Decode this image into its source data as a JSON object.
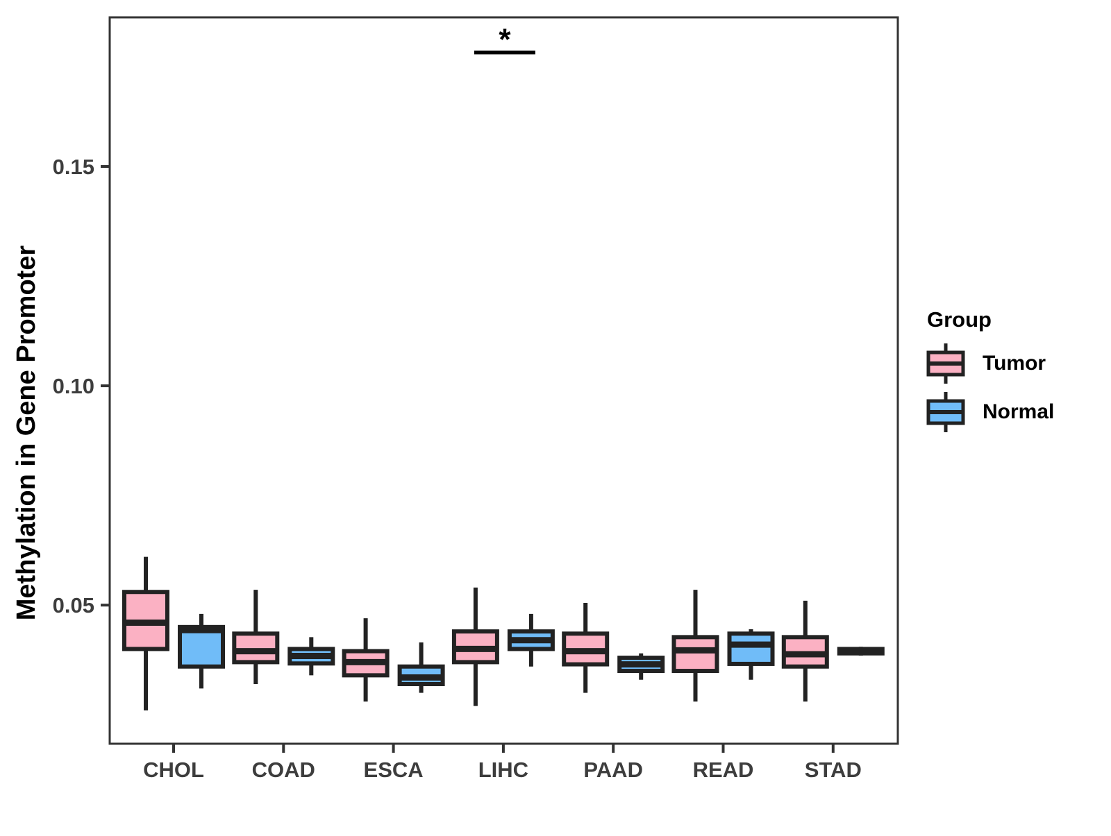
{
  "chart_data": {
    "type": "boxplot",
    "title": "",
    "xlabel": "",
    "ylabel": "Methylation in Gene Promoter",
    "categories": [
      "CHOL",
      "COAD",
      "ESCA",
      "LIHC",
      "PAAD",
      "READ",
      "STAD"
    ],
    "y_ticks": [
      0.05,
      0.1,
      0.15
    ],
    "y_tick_labels": [
      "0.05",
      "0.10",
      "0.15"
    ],
    "ylim": [
      0.0184,
      0.184
    ],
    "grid": false,
    "legend": {
      "title": "Group",
      "position": "right",
      "entries": [
        {
          "label": "Tumor",
          "fill": "#FBB1C3"
        },
        {
          "label": "Normal",
          "fill": "#70BCF8"
        }
      ]
    },
    "series": [
      {
        "name": "Tumor",
        "fill": "#FBB1C3",
        "boxes": [
          {
            "category": "CHOL",
            "low": 0.026,
            "q1": 0.04,
            "median": 0.046,
            "q3": 0.053,
            "high": 0.061
          },
          {
            "category": "COAD",
            "low": 0.032,
            "q1": 0.037,
            "median": 0.0395,
            "q3": 0.0435,
            "high": 0.0535
          },
          {
            "category": "ESCA",
            "low": 0.028,
            "q1": 0.034,
            "median": 0.037,
            "q3": 0.0395,
            "high": 0.047
          },
          {
            "category": "LIHC",
            "low": 0.027,
            "q1": 0.037,
            "median": 0.04,
            "q3": 0.044,
            "high": 0.054
          },
          {
            "category": "PAAD",
            "low": 0.03,
            "q1": 0.0365,
            "median": 0.0395,
            "q3": 0.0435,
            "high": 0.0505
          },
          {
            "category": "READ",
            "low": 0.028,
            "q1": 0.035,
            "median": 0.0397,
            "q3": 0.0427,
            "high": 0.0535
          },
          {
            "category": "STAD",
            "low": 0.028,
            "q1": 0.036,
            "median": 0.0388,
            "q3": 0.0427,
            "high": 0.051
          }
        ]
      },
      {
        "name": "Normal",
        "fill": "#70BCF8",
        "boxes": [
          {
            "category": "CHOL",
            "low": 0.031,
            "q1": 0.036,
            "median": 0.0443,
            "q3": 0.045,
            "high": 0.048
          },
          {
            "category": "COAD",
            "low": 0.034,
            "q1": 0.0367,
            "median": 0.0384,
            "q3": 0.04,
            "high": 0.0427
          },
          {
            "category": "ESCA",
            "low": 0.03,
            "q1": 0.032,
            "median": 0.0335,
            "q3": 0.036,
            "high": 0.0415
          },
          {
            "category": "LIHC",
            "low": 0.036,
            "q1": 0.04,
            "median": 0.042,
            "q3": 0.044,
            "high": 0.048
          },
          {
            "category": "PAAD",
            "low": 0.033,
            "q1": 0.035,
            "median": 0.0365,
            "q3": 0.038,
            "high": 0.039
          },
          {
            "category": "READ",
            "low": 0.033,
            "q1": 0.0366,
            "median": 0.041,
            "q3": 0.0435,
            "high": 0.0445
          },
          {
            "category": "STAD",
            "low": 0.0385,
            "q1": 0.039,
            "median": 0.0395,
            "q3": 0.04,
            "high": 0.0405
          }
        ]
      }
    ],
    "annotation": {
      "label": "*",
      "category": "LIHC",
      "between": [
        "Tumor",
        "Normal"
      ],
      "y": 0.176
    }
  },
  "colors": {
    "tumor_fill": "#FBB1C3",
    "normal_fill": "#70BCF8",
    "box_border": "#222222",
    "panel_border": "#333333",
    "tick_text": "#3d3d3d",
    "annotation": "#000000",
    "background": "#ffffff"
  }
}
